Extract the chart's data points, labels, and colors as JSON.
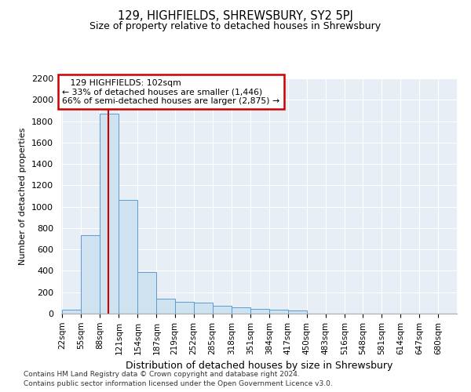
{
  "title1": "129, HIGHFIELDS, SHREWSBURY, SY2 5PJ",
  "title2": "Size of property relative to detached houses in Shrewsbury",
  "xlabel": "Distribution of detached houses by size in Shrewsbury",
  "ylabel": "Number of detached properties",
  "footnote1": "Contains HM Land Registry data © Crown copyright and database right 2024.",
  "footnote2": "Contains public sector information licensed under the Open Government Licence v3.0.",
  "annotation_line1": "   129 HIGHFIELDS: 102sqm",
  "annotation_line2": "← 33% of detached houses are smaller (1,446)",
  "annotation_line3": "66% of semi-detached houses are larger (2,875) →",
  "property_size": 102,
  "bin_starts": [
    22,
    55,
    88,
    121,
    154,
    187,
    219,
    252,
    285,
    318,
    351,
    384,
    417,
    450,
    483,
    516,
    548,
    581,
    614,
    647
  ],
  "bin_width": 33,
  "bar_heights": [
    40,
    730,
    1870,
    1060,
    390,
    140,
    110,
    100,
    75,
    60,
    45,
    40,
    30,
    0,
    0,
    0,
    0,
    0,
    0,
    0
  ],
  "bar_color": "#cfe2f0",
  "bar_edge_color": "#5b9bd5",
  "vline_color": "#cc0000",
  "vline_x": 102,
  "annotation_box_edgecolor": "#cc0000",
  "ylim": [
    0,
    2200
  ],
  "yticks": [
    0,
    200,
    400,
    600,
    800,
    1000,
    1200,
    1400,
    1600,
    1800,
    2000,
    2200
  ],
  "xtick_labels": [
    "22sqm",
    "55sqm",
    "88sqm",
    "121sqm",
    "154sqm",
    "187sqm",
    "219sqm",
    "252sqm",
    "285sqm",
    "318sqm",
    "351sqm",
    "384sqm",
    "417sqm",
    "450sqm",
    "483sqm",
    "516sqm",
    "548sqm",
    "581sqm",
    "614sqm",
    "647sqm",
    "680sqm"
  ],
  "plot_bg_color": "#e8eef5",
  "grid_color": "#ffffff",
  "spine_color": "#aaaaaa"
}
